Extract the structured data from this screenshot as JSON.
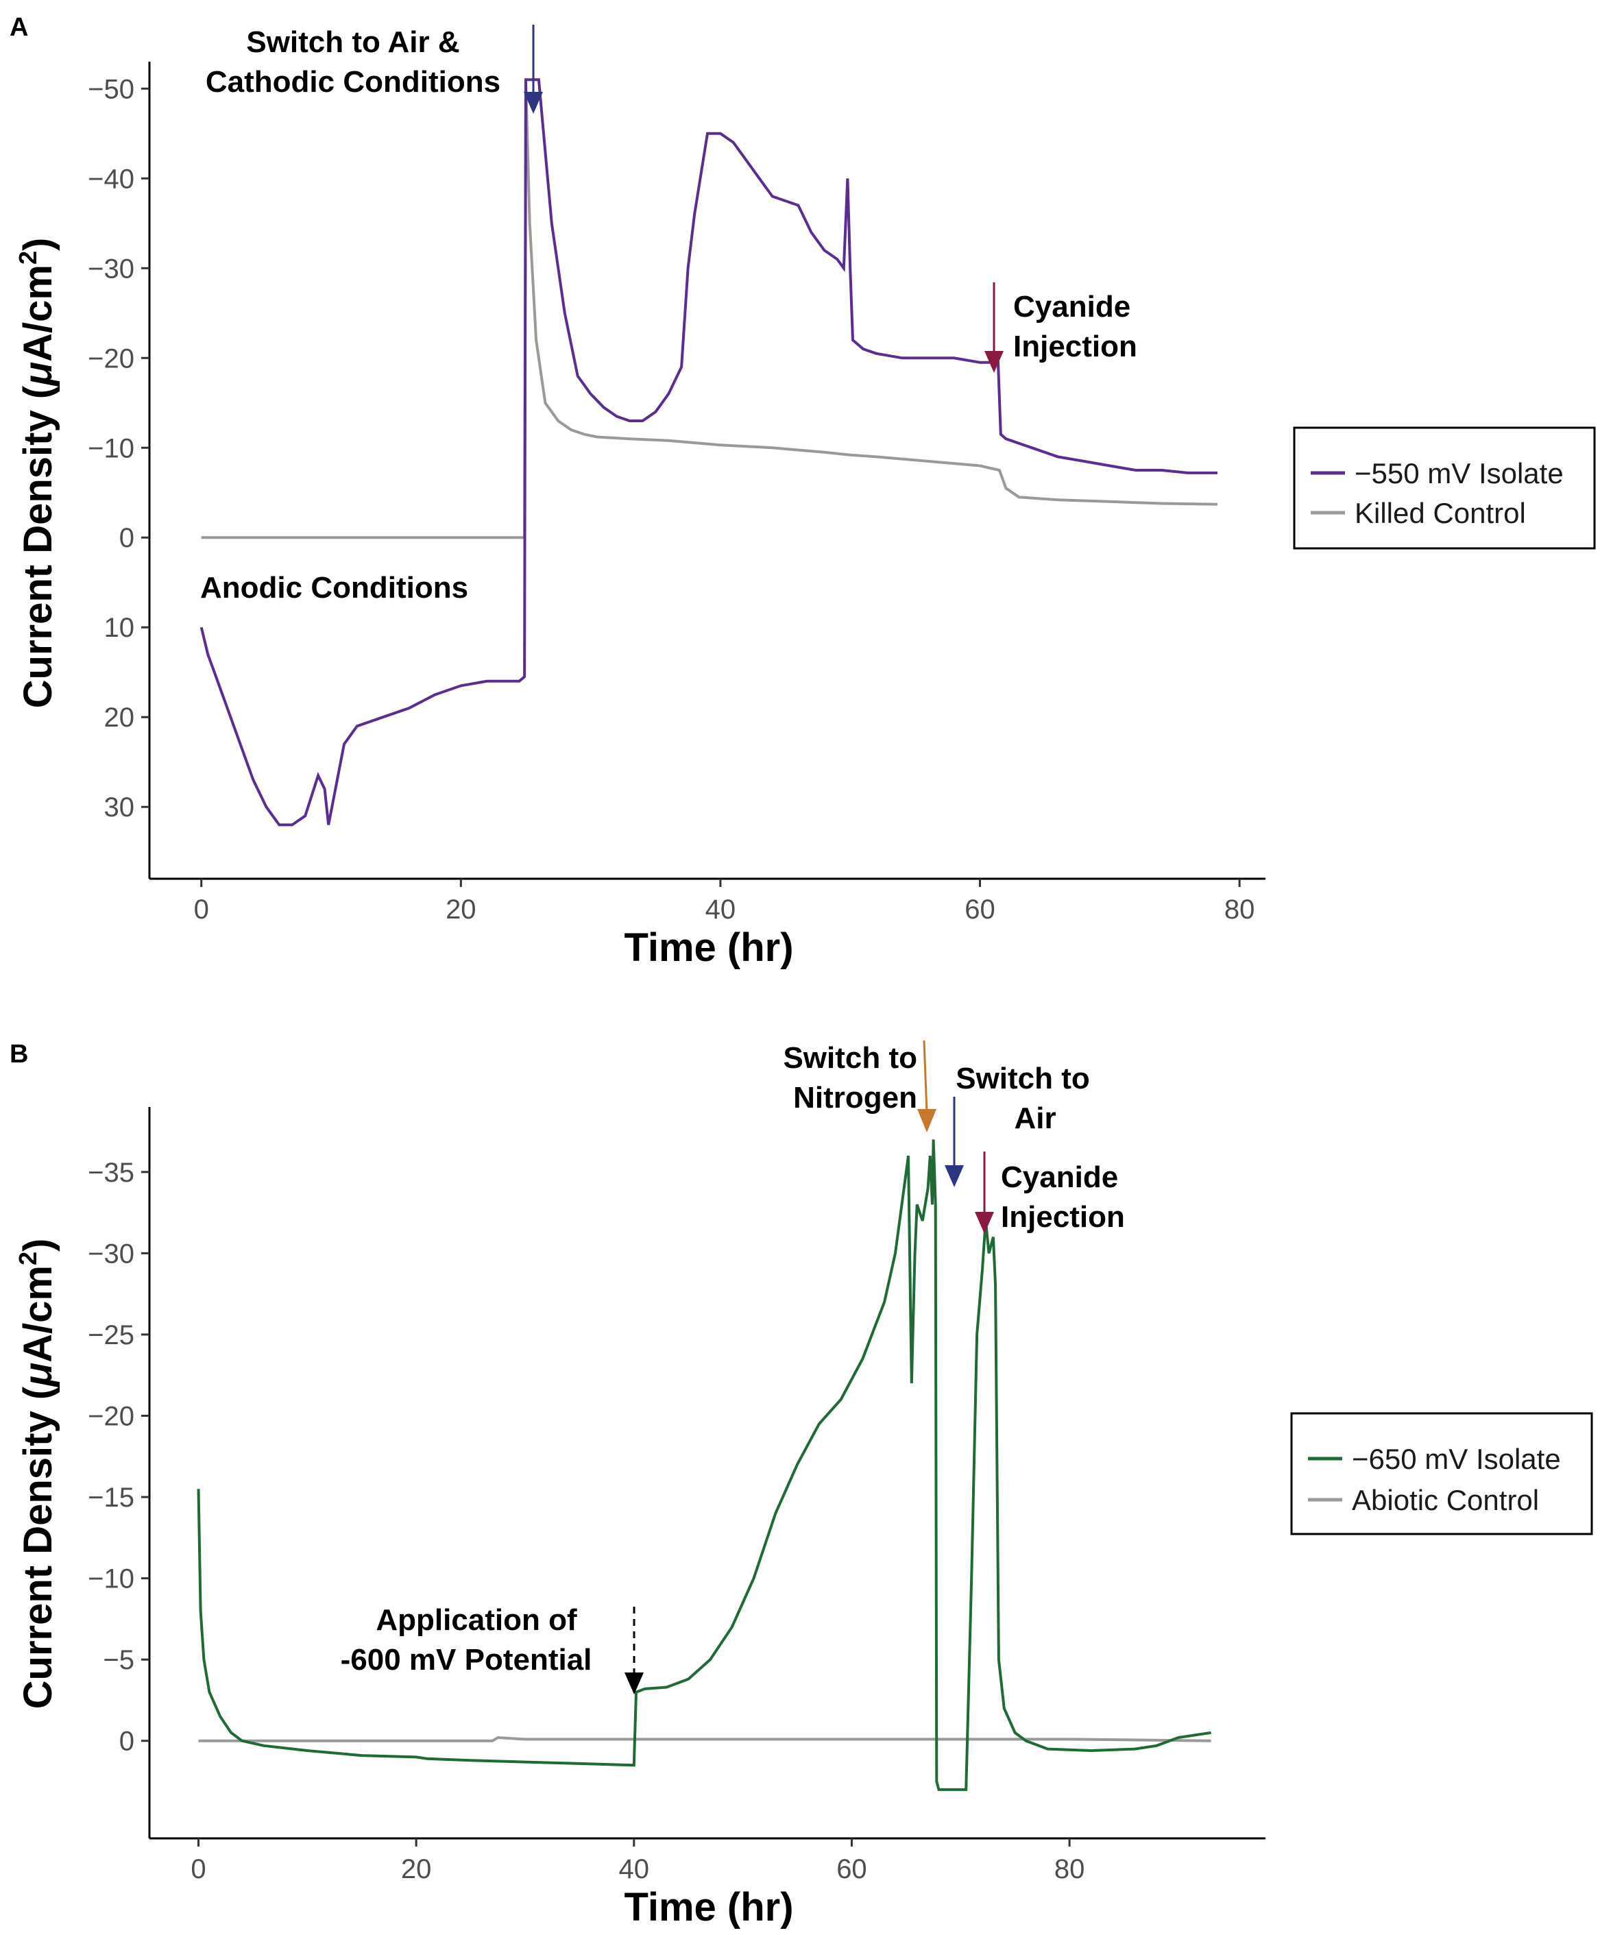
{
  "chart_data": [
    {
      "type": "line",
      "panel_label": "A",
      "xlabel": "Time (hr)",
      "ylabel_main": "Current Density (",
      "ylabel_unit_mu": "μ",
      "ylabel_unit_rest": "A/cm",
      "ylabel_sup": "2",
      "ylabel_close": ")",
      "xlim": [
        -4,
        82
      ],
      "ylim": [
        -53,
        38
      ],
      "x_ticks": [
        0,
        20,
        40,
        60,
        80
      ],
      "x_tick_labels": [
        "0",
        "20",
        "40",
        "60",
        "80"
      ],
      "y_ticks": [
        -50,
        -40,
        -30,
        -20,
        -10,
        0,
        10,
        20,
        30
      ],
      "y_tick_labels": [
        "−50",
        "−40",
        "−30",
        "−20",
        "−10",
        "0",
        "10",
        "20",
        "30"
      ],
      "y_reversed": true,
      "legend": {
        "position": "right",
        "entries": [
          "−550 mV Isolate",
          "Killed Control"
        ]
      },
      "series": [
        {
          "name": "−550 mV Isolate",
          "color": "#5b2c92",
          "points": [
            [
              0,
              10
            ],
            [
              0.5,
              13
            ],
            [
              1,
              15
            ],
            [
              2,
              19
            ],
            [
              3,
              23
            ],
            [
              4,
              27
            ],
            [
              5,
              30
            ],
            [
              6,
              32
            ],
            [
              7,
              32
            ],
            [
              8,
              31
            ],
            [
              9,
              26.5
            ],
            [
              9.5,
              28
            ],
            [
              9.8,
              32
            ],
            [
              10.2,
              29
            ],
            [
              11,
              23
            ],
            [
              12,
              21
            ],
            [
              14,
              20
            ],
            [
              16,
              19
            ],
            [
              18,
              17.5
            ],
            [
              20,
              16.5
            ],
            [
              22,
              16
            ],
            [
              24.5,
              16
            ],
            [
              24.9,
              15.5
            ],
            [
              25,
              -51
            ],
            [
              26,
              -51
            ],
            [
              27,
              -35
            ],
            [
              28,
              -25
            ],
            [
              29,
              -18
            ],
            [
              30,
              -16
            ],
            [
              31,
              -14.5
            ],
            [
              32,
              -13.5
            ],
            [
              33,
              -13
            ],
            [
              34,
              -13
            ],
            [
              35,
              -14
            ],
            [
              36,
              -16
            ],
            [
              37,
              -19
            ],
            [
              37.5,
              -30
            ],
            [
              38,
              -36
            ],
            [
              39,
              -45
            ],
            [
              40,
              -45
            ],
            [
              41,
              -44
            ],
            [
              42,
              -42
            ],
            [
              43,
              -40
            ],
            [
              44,
              -38
            ],
            [
              45,
              -37.5
            ],
            [
              46,
              -37
            ],
            [
              47,
              -34
            ],
            [
              48,
              -32
            ],
            [
              49,
              -31
            ],
            [
              49.5,
              -30
            ],
            [
              49.8,
              -40
            ],
            [
              50,
              -30
            ],
            [
              50.2,
              -22
            ],
            [
              51,
              -21
            ],
            [
              52,
              -20.5
            ],
            [
              54,
              -20
            ],
            [
              56,
              -20
            ],
            [
              58,
              -20
            ],
            [
              60,
              -19.5
            ],
            [
              61,
              -19.5
            ],
            [
              61.4,
              -19.5
            ],
            [
              61.6,
              -11.5
            ],
            [
              62,
              -11
            ],
            [
              64,
              -10
            ],
            [
              66,
              -9
            ],
            [
              68,
              -8.5
            ],
            [
              70,
              -8
            ],
            [
              72,
              -7.5
            ],
            [
              74,
              -7.5
            ],
            [
              76,
              -7.2
            ],
            [
              78.3,
              -7.2
            ]
          ]
        },
        {
          "name": "Killed Control",
          "color": "#999999",
          "points": [
            [
              0,
              0
            ],
            [
              5,
              0
            ],
            [
              10,
              0
            ],
            [
              15,
              0
            ],
            [
              20,
              0
            ],
            [
              24.9,
              0
            ],
            [
              25,
              -51
            ],
            [
              25.3,
              -35
            ],
            [
              25.8,
              -22
            ],
            [
              26.5,
              -15
            ],
            [
              27.5,
              -13
            ],
            [
              28.5,
              -12
            ],
            [
              29.5,
              -11.5
            ],
            [
              30.5,
              -11.2
            ],
            [
              33,
              -11
            ],
            [
              36,
              -10.8
            ],
            [
              40,
              -10.3
            ],
            [
              44,
              -10
            ],
            [
              48,
              -9.5
            ],
            [
              50,
              -9.2
            ],
            [
              52,
              -9
            ],
            [
              56,
              -8.5
            ],
            [
              60,
              -8
            ],
            [
              61.5,
              -7.5
            ],
            [
              62,
              -5.5
            ],
            [
              63,
              -4.5
            ],
            [
              66,
              -4.2
            ],
            [
              70,
              -4
            ],
            [
              74,
              -3.8
            ],
            [
              78.3,
              -3.7
            ]
          ]
        }
      ],
      "annotations": [
        {
          "lines": [
            "Switch to Air &",
            "Cathodic Conditions"
          ],
          "arrow_x": 26,
          "arrow_color": "#2e3580"
        },
        {
          "lines": [
            "Cyanide",
            "Injection"
          ],
          "arrow_x": 61,
          "arrow_color": "#8b1a3f"
        },
        {
          "lines": [
            "Anodic Conditions"
          ]
        }
      ]
    },
    {
      "type": "line",
      "panel_label": "B",
      "xlabel": "Time (hr)",
      "ylabel_main": "Current Density (",
      "ylabel_unit_mu": "μ",
      "ylabel_unit_rest": "A/cm",
      "ylabel_sup": "2",
      "ylabel_close": ")",
      "xlim": [
        -4.5,
        98
      ],
      "ylim": [
        -39,
        6
      ],
      "x_ticks": [
        0,
        20,
        40,
        60,
        80
      ],
      "x_tick_labels": [
        "0",
        "20",
        "40",
        "60",
        "80"
      ],
      "y_ticks": [
        -35,
        -30,
        -25,
        -20,
        -15,
        -10,
        -5,
        0
      ],
      "y_tick_labels": [
        "−35",
        "−30",
        "−25",
        "−20",
        "−15",
        "−10",
        "−5",
        "0"
      ],
      "y_reversed": true,
      "legend": {
        "position": "right",
        "entries": [
          "−650 mV Isolate",
          "Abiotic Control"
        ]
      },
      "series": [
        {
          "name": "−650 mV Isolate",
          "color": "#1e6b35",
          "points": [
            [
              0,
              -15.5
            ],
            [
              0.2,
              -8
            ],
            [
              0.5,
              -5
            ],
            [
              1,
              -3
            ],
            [
              2,
              -1.5
            ],
            [
              3,
              -0.5
            ],
            [
              4,
              0
            ],
            [
              6,
              0.3
            ],
            [
              10,
              0.6
            ],
            [
              15,
              0.9
            ],
            [
              20,
              1
            ],
            [
              21,
              1.1
            ],
            [
              25,
              1.2
            ],
            [
              30,
              1.3
            ],
            [
              35,
              1.4
            ],
            [
              40,
              1.5
            ],
            [
              40.2,
              -3
            ],
            [
              41,
              -3.2
            ],
            [
              43,
              -3.3
            ],
            [
              45,
              -3.8
            ],
            [
              47,
              -5
            ],
            [
              49,
              -7
            ],
            [
              51,
              -10
            ],
            [
              53,
              -14
            ],
            [
              55,
              -17
            ],
            [
              57,
              -19.5
            ],
            [
              59,
              -21
            ],
            [
              61,
              -23.5
            ],
            [
              63,
              -27
            ],
            [
              64,
              -30
            ],
            [
              65,
              -35
            ],
            [
              65.2,
              -36
            ],
            [
              65.5,
              -22
            ],
            [
              65.8,
              -30
            ],
            [
              66,
              -33
            ],
            [
              66.5,
              -32
            ],
            [
              67,
              -34
            ],
            [
              67.2,
              -36
            ],
            [
              67.4,
              -33
            ],
            [
              67.5,
              -37
            ],
            [
              67.7,
              -33
            ],
            [
              67.8,
              2.5
            ],
            [
              68,
              3
            ],
            [
              70,
              3
            ],
            [
              70.5,
              3
            ],
            [
              71,
              -10
            ],
            [
              71.5,
              -25
            ],
            [
              72,
              -29
            ],
            [
              72.3,
              -32
            ],
            [
              72.6,
              -30
            ],
            [
              73,
              -31
            ],
            [
              73.2,
              -28
            ],
            [
              73.5,
              -5
            ],
            [
              74,
              -2
            ],
            [
              75,
              -0.5
            ],
            [
              76,
              0
            ],
            [
              78,
              0.5
            ],
            [
              82,
              0.6
            ],
            [
              86,
              0.5
            ],
            [
              88,
              0.3
            ],
            [
              90,
              -0.2
            ],
            [
              92,
              -0.4
            ],
            [
              93,
              -0.5
            ]
          ]
        },
        {
          "name": "Abiotic Control",
          "color": "#999999",
          "points": [
            [
              0,
              0
            ],
            [
              10,
              0
            ],
            [
              20,
              0
            ],
            [
              27,
              0
            ],
            [
              27.5,
              -0.2
            ],
            [
              30,
              -0.1
            ],
            [
              40,
              -0.1
            ],
            [
              50,
              -0.1
            ],
            [
              60,
              -0.1
            ],
            [
              70,
              -0.1
            ],
            [
              80,
              -0.1
            ],
            [
              93,
              0
            ]
          ]
        }
      ],
      "annotations": [
        {
          "lines": [
            "Application of",
            "-600 mV Potential"
          ],
          "arrow_x": 40.2,
          "arrow_color": "#000000"
        },
        {
          "lines": [
            "Switch to",
            "Nitrogen"
          ],
          "arrow_x": 67.2,
          "arrow_color": "#c8782a"
        },
        {
          "lines": [
            "Switch to",
            "Air"
          ],
          "arrow_x": 70.2,
          "arrow_color": "#2e3580"
        },
        {
          "lines": [
            "Cyanide",
            "Injection"
          ],
          "arrow_x": 72.8,
          "arrow_color": "#8b1a3f"
        }
      ]
    }
  ]
}
